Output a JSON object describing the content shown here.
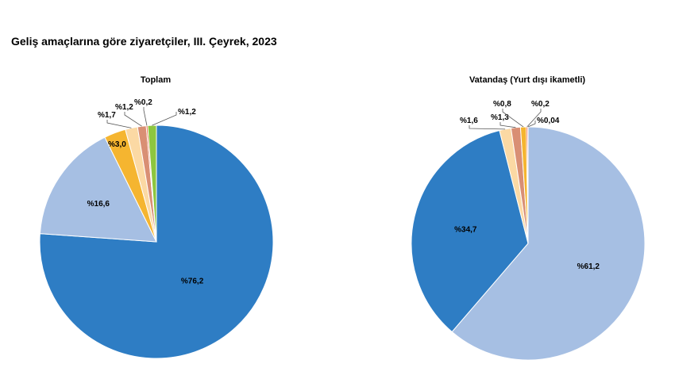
{
  "title": "Geliş amaçlarına göre ziyaretçiler, III. Çeyrek, 2023",
  "chart_data": [
    {
      "type": "pie",
      "title": "Toplam",
      "slices": [
        {
          "value": 76.2,
          "label": "%76,2",
          "color": "#2E7DC4"
        },
        {
          "value": 16.6,
          "label": "%16,6",
          "color": "#A6BFE3"
        },
        {
          "value": 3.0,
          "label": "%3,0",
          "color": "#F5B530"
        },
        {
          "value": 1.7,
          "label": "%1,7",
          "color": "#FBD9A4"
        },
        {
          "value": 1.2,
          "label": "%1,2",
          "color": "#D98F74"
        },
        {
          "value": 0.2,
          "label": "%0,2",
          "color": "#E84A1F"
        },
        {
          "value": 1.2,
          "label": "%1,2",
          "color": "#8DC63F"
        }
      ]
    },
    {
      "type": "pie",
      "title": "Vatandaş (Yurt dışı ikametli)",
      "slices": [
        {
          "value": 61.2,
          "label": "%61,2",
          "color": "#A6BFE3"
        },
        {
          "value": 34.7,
          "label": "%34,7",
          "color": "#2E7DC4"
        },
        {
          "value": 1.6,
          "label": "%1,6",
          "color": "#FBD9A4"
        },
        {
          "value": 1.3,
          "label": "%1,3",
          "color": "#D98F74"
        },
        {
          "value": 0.8,
          "label": "%0,8",
          "color": "#F5B530"
        },
        {
          "value": 0.2,
          "label": "%0,2",
          "color": "#E84A1F"
        },
        {
          "value": 0.04,
          "label": "%0,04",
          "color": "#8DC63F"
        }
      ]
    }
  ]
}
